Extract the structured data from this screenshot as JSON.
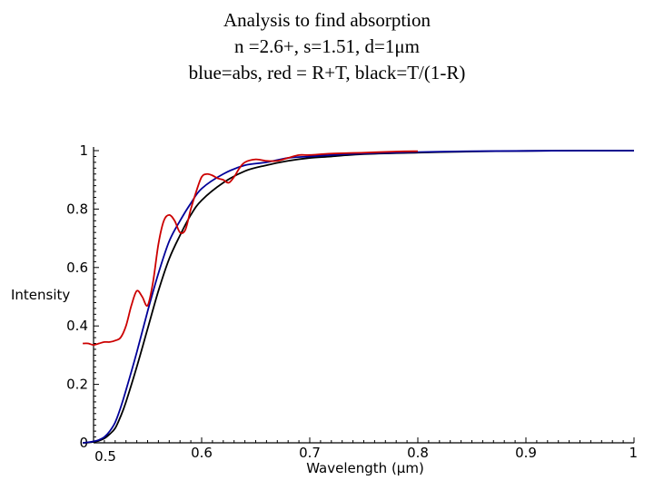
{
  "title": {
    "line1": "Analysis to find absorption",
    "line2": "n =2.6+, s=1.51, d=1μm",
    "line3": "blue=abs, red = R+T, black=T/(1-R)"
  },
  "chart_data": {
    "type": "line",
    "title": "Analysis to find absorption",
    "xlabel": "Wavelength (μm)",
    "ylabel": "Intensity",
    "xlim": [
      0.5,
      1.0
    ],
    "ylim": [
      0,
      1.0
    ],
    "x_axis_origin_label": "0.5",
    "x_tick_labels": [
      "0.6",
      "0.7",
      "0.8",
      "0.9",
      "1"
    ],
    "x_ticks": [
      0.6,
      0.7,
      0.8,
      0.9,
      1.0
    ],
    "y_tick_labels": [
      "0",
      "0.2",
      "0.4",
      "0.6",
      "0.8",
      "1"
    ],
    "y_ticks": [
      0,
      0.2,
      0.4,
      0.6,
      0.8,
      1.0
    ],
    "series": [
      {
        "name": "R+T",
        "color": "#cc0000",
        "x": [
          0.49,
          0.495,
          0.5,
          0.505,
          0.51,
          0.515,
          0.52,
          0.525,
          0.53,
          0.535,
          0.54,
          0.545,
          0.55,
          0.555,
          0.56,
          0.565,
          0.57,
          0.575,
          0.58,
          0.585,
          0.59,
          0.595,
          0.6,
          0.605,
          0.61,
          0.615,
          0.62,
          0.625,
          0.63,
          0.635,
          0.64,
          0.65,
          0.66,
          0.67,
          0.68,
          0.69,
          0.7,
          0.72,
          0.75,
          0.78,
          0.8
        ],
        "values": [
          0.34,
          0.34,
          0.335,
          0.34,
          0.345,
          0.345,
          0.35,
          0.36,
          0.4,
          0.47,
          0.52,
          0.5,
          0.47,
          0.55,
          0.68,
          0.76,
          0.78,
          0.76,
          0.72,
          0.73,
          0.8,
          0.86,
          0.91,
          0.92,
          0.915,
          0.905,
          0.9,
          0.89,
          0.91,
          0.94,
          0.96,
          0.97,
          0.965,
          0.965,
          0.975,
          0.985,
          0.985,
          0.99,
          0.993,
          0.997,
          0.998
        ]
      },
      {
        "name": "abs",
        "color": "#000099",
        "x": [
          0.49,
          0.495,
          0.5,
          0.505,
          0.51,
          0.515,
          0.52,
          0.525,
          0.53,
          0.54,
          0.55,
          0.56,
          0.57,
          0.58,
          0.59,
          0.6,
          0.62,
          0.64,
          0.66,
          0.68,
          0.7,
          0.72,
          0.75,
          0.8,
          0.85,
          0.9,
          0.95,
          1.0
        ],
        "values": [
          0.0,
          0.002,
          0.005,
          0.01,
          0.02,
          0.04,
          0.07,
          0.12,
          0.18,
          0.31,
          0.45,
          0.58,
          0.69,
          0.76,
          0.82,
          0.87,
          0.92,
          0.95,
          0.96,
          0.975,
          0.98,
          0.985,
          0.99,
          0.995,
          0.998,
          0.999,
          1.0,
          1.0
        ]
      },
      {
        "name": "T/(1-R)",
        "color": "#000000",
        "x": [
          0.49,
          0.495,
          0.5,
          0.505,
          0.51,
          0.515,
          0.52,
          0.525,
          0.53,
          0.54,
          0.55,
          0.56,
          0.57,
          0.58,
          0.59,
          0.6,
          0.62,
          0.64,
          0.66,
          0.68,
          0.7,
          0.72,
          0.75,
          0.8,
          0.85,
          0.9,
          0.95,
          1.0
        ],
        "values": [
          0.0,
          0.001,
          0.003,
          0.007,
          0.015,
          0.03,
          0.05,
          0.09,
          0.14,
          0.26,
          0.39,
          0.52,
          0.63,
          0.71,
          0.78,
          0.83,
          0.89,
          0.93,
          0.95,
          0.965,
          0.975,
          0.98,
          0.988,
          0.993,
          0.997,
          0.999,
          1.0,
          1.0
        ]
      }
    ]
  }
}
